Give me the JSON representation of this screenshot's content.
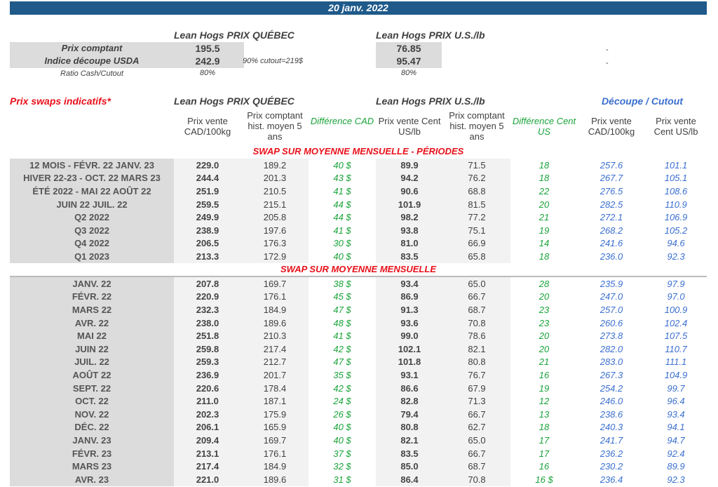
{
  "banner": {
    "date": "20 janv. 2022"
  },
  "summary": {
    "qc_title": "Lean Hogs PRIX QUÉBEC",
    "us_title": "Lean Hogs PRIX U.S./lb",
    "rows": [
      {
        "label": "Prix comptant",
        "qc": "195.5",
        "us": "76.85",
        "right": "-"
      },
      {
        "label": "Indice découpe USDA",
        "qc": "242.9",
        "note": "90% cutout=219$",
        "us": "95.47",
        "right": "-"
      },
      {
        "label": "Ratio Cash/Cutout",
        "qc": "80%",
        "us": "80%"
      }
    ]
  },
  "swaps": {
    "title": "Prix swaps indicatifs*",
    "qc_title": "Lean Hogs PRIX QUÉBEC",
    "us_title": "Lean Hogs PRIX U.S./lb",
    "cutout_title": "Découpe / Cutout",
    "columns": [
      "Prix vente CAD/100kg",
      "Prix comptant hist. moyen 5 ans",
      "Différence CAD",
      "Prix vente Cent US/lb",
      "Prix comptant hist. moyen 5 ans",
      "Différence Cent US",
      "Prix vente CAD/100kg",
      "Prix vente Cent US/lb"
    ],
    "colors": {
      "green": "#1aa33a",
      "blue": "#3a6fd0",
      "red": "#e8101a",
      "banner": "#1f5a8a"
    },
    "section1_title": "SWAP SUR MOYENNE MENSUELLE - PÉRIODES",
    "periods": [
      [
        "12 MOIS - FÉVR. 22 JANV. 23",
        "229.0",
        "189.2",
        "40 $",
        "89.9",
        "71.5",
        "18",
        "257.6",
        "101.1"
      ],
      [
        "HIVER 22-23 - OCT. 22 MARS 23",
        "244.4",
        "201.3",
        "43 $",
        "94.2",
        "76.2",
        "18",
        "267.7",
        "105.1"
      ],
      [
        "ÉTÉ 2022 - MAI 22 AOÛT 22",
        "251.9",
        "210.5",
        "41 $",
        "90.6",
        "68.8",
        "22",
        "276.5",
        "108.6"
      ],
      [
        "JUIN 22 JUIL. 22",
        "259.5",
        "215.1",
        "44 $",
        "101.9",
        "81.5",
        "20",
        "282.5",
        "110.9"
      ],
      [
        "Q2 2022",
        "249.9",
        "205.8",
        "44 $",
        "98.2",
        "77.2",
        "21",
        "272.1",
        "106.9"
      ],
      [
        "Q3 2022",
        "238.9",
        "197.6",
        "41 $",
        "93.8",
        "75.1",
        "19",
        "268.2",
        "105.2"
      ],
      [
        "Q4 2022",
        "206.5",
        "176.3",
        "30 $",
        "81.0",
        "66.9",
        "14",
        "241.6",
        "94.6"
      ],
      [
        "Q1 2023",
        "213.3",
        "172.9",
        "40 $",
        "83.5",
        "65.8",
        "18",
        "236.0",
        "92.3"
      ]
    ],
    "section2_title": "SWAP SUR MOYENNE MENSUELLE",
    "months": [
      [
        "JANV. 22",
        "207.8",
        "169.7",
        "38 $",
        "93.4",
        "65.0",
        "28",
        "235.9",
        "97.9"
      ],
      [
        "FÉVR. 22",
        "220.9",
        "176.1",
        "45 $",
        "86.9",
        "66.7",
        "20",
        "247.0",
        "97.0"
      ],
      [
        "MARS 22",
        "232.3",
        "184.9",
        "47 $",
        "91.3",
        "68.7",
        "23",
        "257.0",
        "100.9"
      ],
      [
        "AVR. 22",
        "238.0",
        "189.6",
        "48 $",
        "93.6",
        "70.8",
        "23",
        "260.6",
        "102.4"
      ],
      [
        "MAI 22",
        "251.8",
        "210.3",
        "41 $",
        "99.0",
        "78.6",
        "20",
        "273.8",
        "107.5"
      ],
      [
        "JUIN 22",
        "259.8",
        "217.4",
        "42 $",
        "102.1",
        "82.1",
        "20",
        "282.0",
        "110.7"
      ],
      [
        "JUIL. 22",
        "259.3",
        "212.7",
        "47 $",
        "101.8",
        "80.8",
        "21",
        "283.0",
        "111.1"
      ],
      [
        "AOÛT 22",
        "236.9",
        "201.7",
        "35 $",
        "93.1",
        "76.7",
        "16",
        "267.3",
        "104.9"
      ],
      [
        "SEPT. 22",
        "220.6",
        "178.4",
        "42 $",
        "86.6",
        "67.9",
        "19",
        "254.2",
        "99.7"
      ],
      [
        "OCT. 22",
        "211.0",
        "187.1",
        "24 $",
        "82.8",
        "71.3",
        "12",
        "246.0",
        "96.4"
      ],
      [
        "NOV. 22",
        "202.3",
        "175.9",
        "26 $",
        "79.4",
        "66.7",
        "13",
        "238.6",
        "93.4"
      ],
      [
        "DÉC. 22",
        "206.1",
        "165.9",
        "40 $",
        "80.8",
        "62.7",
        "18",
        "240.3",
        "94.1"
      ],
      [
        "JANV. 23",
        "209.4",
        "169.7",
        "40 $",
        "82.1",
        "65.0",
        "17",
        "241.7",
        "94.7"
      ],
      [
        "FÉVR. 23",
        "213.1",
        "176.1",
        "37 $",
        "83.5",
        "66.7",
        "17",
        "236.2",
        "92.4"
      ],
      [
        "MARS 23",
        "217.4",
        "184.9",
        "32 $",
        "85.0",
        "68.7",
        "16",
        "230.2",
        "89.9"
      ],
      [
        "AVR. 23",
        "221.0",
        "189.6",
        "31 $",
        "86.4",
        "70.8",
        "16 $",
        "236.4",
        "92.3"
      ]
    ]
  }
}
